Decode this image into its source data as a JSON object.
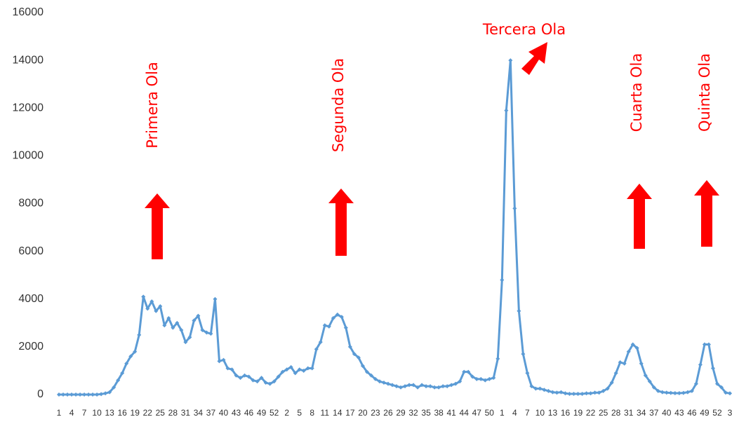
{
  "chart_data": {
    "type": "line",
    "annotations": [
      "Primera Ola",
      "Segunda Ola",
      "Tercera  Ola",
      "Cuarta Ola",
      "Quinta Ola"
    ],
    "categories": [
      "1",
      null,
      null,
      "4",
      null,
      null,
      "7",
      null,
      null,
      "10",
      null,
      null,
      "13",
      null,
      null,
      "16",
      null,
      null,
      "19",
      null,
      null,
      "22",
      null,
      null,
      "25",
      null,
      null,
      "28",
      null,
      null,
      "31",
      null,
      null,
      "34",
      null,
      null,
      "37",
      null,
      null,
      "40",
      null,
      null,
      "43",
      null,
      null,
      "46",
      null,
      null,
      "49",
      null,
      null,
      "52",
      null,
      null,
      "2",
      null,
      null,
      "5",
      null,
      null,
      "8",
      null,
      null,
      "11",
      null,
      null,
      "14",
      null,
      null,
      "17",
      null,
      null,
      "20",
      null,
      null,
      "23",
      null,
      null,
      "26",
      null,
      null,
      "29",
      null,
      null,
      "32",
      null,
      null,
      "35",
      null,
      null,
      "38",
      null,
      null,
      "41",
      null,
      null,
      "44",
      null,
      null,
      "47",
      null,
      null,
      "50",
      null,
      null,
      "1",
      null,
      null,
      "4",
      null,
      null,
      "7",
      null,
      null,
      "10",
      null,
      null,
      "13",
      null,
      null,
      "16",
      null,
      null,
      "19",
      null,
      null,
      "22",
      null,
      null,
      "25",
      null,
      null,
      "28",
      null,
      null,
      "31",
      null,
      null,
      "34",
      null,
      null,
      "37",
      null,
      null,
      "40",
      null,
      null,
      "43",
      null,
      null,
      "46",
      null,
      null,
      "49",
      null,
      null,
      "52",
      null,
      null,
      "3"
    ],
    "series": [
      {
        "color": "#5b9bd5",
        "values": [
          0,
          0,
          0,
          0,
          0,
          0,
          0,
          0,
          0,
          0,
          20,
          50,
          100,
          300,
          600,
          900,
          1300,
          1600,
          1800,
          2500,
          4100,
          3600,
          3900,
          3500,
          3700,
          2900,
          3200,
          2800,
          3000,
          2700,
          2200,
          2400,
          3100,
          3300,
          2700,
          2600,
          2550,
          4000,
          1400,
          1450,
          1100,
          1050,
          800,
          700,
          800,
          750,
          600,
          550,
          700,
          500,
          450,
          550,
          750,
          950,
          1050,
          1150,
          900,
          1050,
          1000,
          1100,
          1100,
          1900,
          2200,
          2900,
          2850,
          3200,
          3350,
          3250,
          2800,
          2000,
          1700,
          1550,
          1200,
          950,
          800,
          650,
          550,
          500,
          450,
          400,
          350,
          300,
          350,
          400,
          400,
          300,
          400,
          350,
          350,
          300,
          300,
          350,
          350,
          400,
          450,
          550,
          950,
          950,
          750,
          650,
          650,
          600,
          650,
          700,
          1500,
          4800,
          11900,
          14000,
          7800,
          3500,
          1700,
          900,
          350,
          250,
          250,
          200,
          150,
          100,
          80,
          100,
          50,
          30,
          30,
          30,
          30,
          50,
          50,
          80,
          80,
          150,
          250,
          500,
          900,
          1350,
          1300,
          1800,
          2100,
          1950,
          1300,
          800,
          550,
          300,
          150,
          100,
          80,
          70,
          60,
          60,
          70,
          100,
          150,
          450,
          1250,
          2100,
          2100,
          1100,
          450,
          300,
          80,
          50
        ]
      }
    ],
    "ylim": [
      0,
      16000
    ],
    "yticks": [
      0,
      2000,
      4000,
      6000,
      8000,
      10000,
      12000,
      14000,
      16000
    ]
  }
}
